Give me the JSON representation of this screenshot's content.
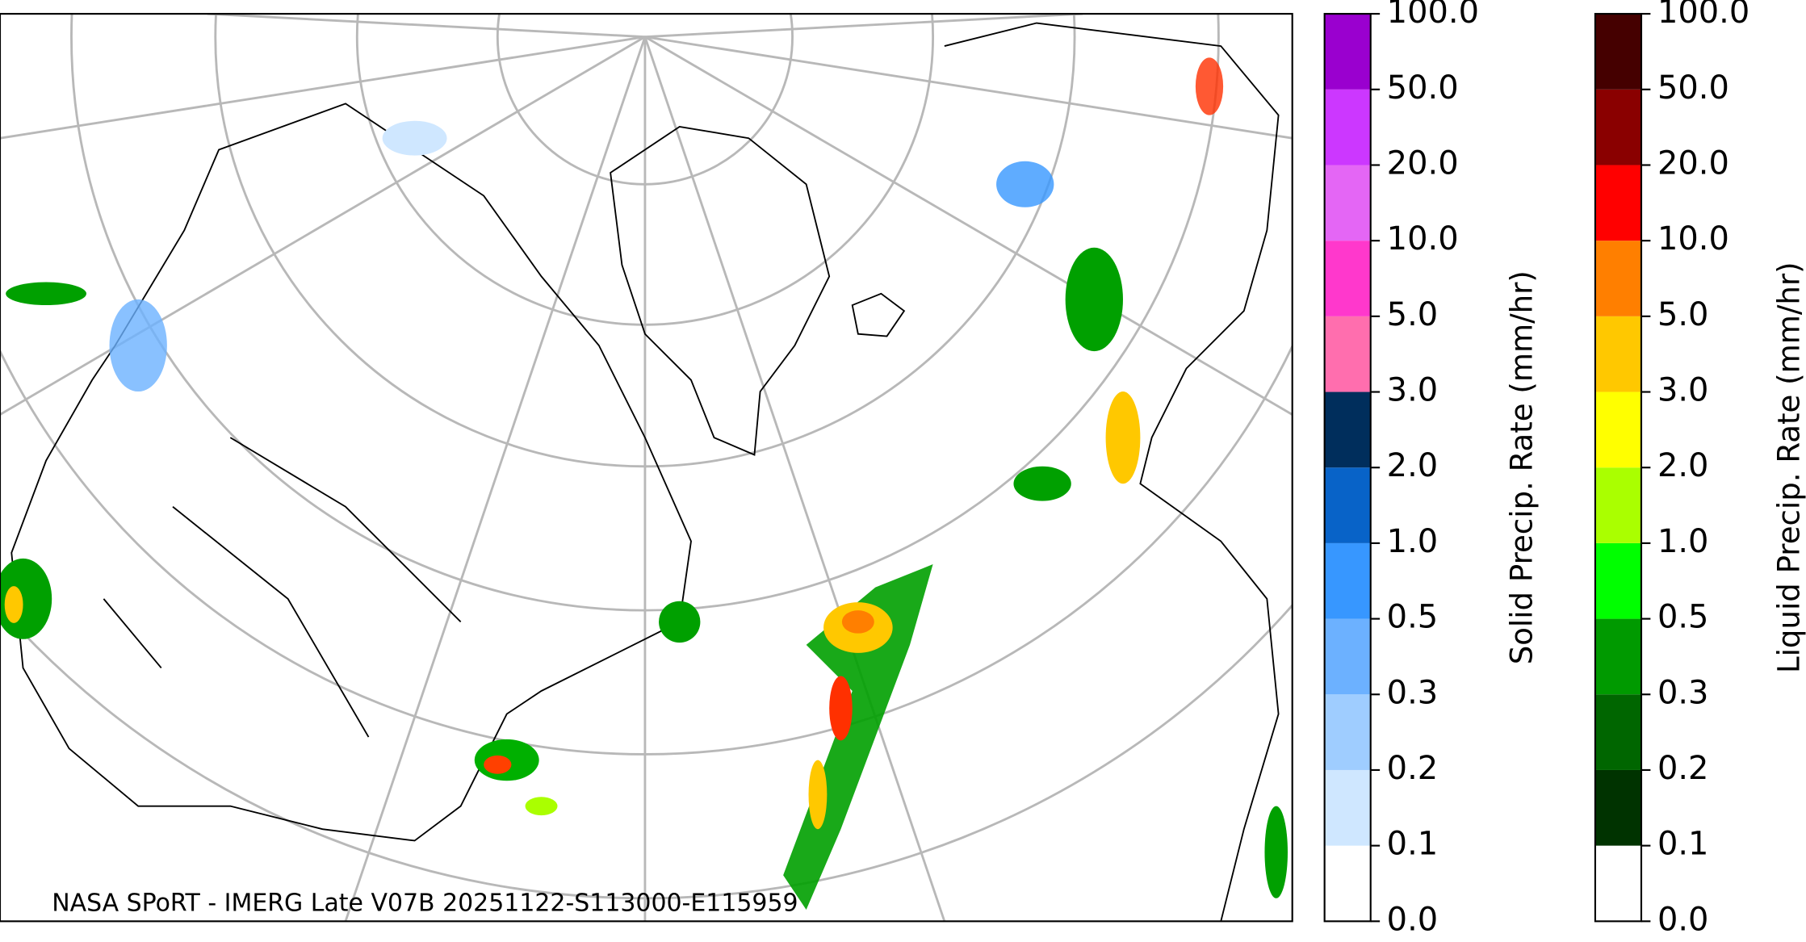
{
  "footer": "NASA SPoRT - IMERG Late V07B 20251122-S113000-E115959",
  "colorbars": [
    {
      "label": "Solid Precip. Rate (mm/hr)",
      "ticks": [
        {
          "value": 0,
          "label": "0.0"
        },
        {
          "value": 0.1,
          "label": "0.1"
        },
        {
          "value": 0.2,
          "label": "0.2"
        },
        {
          "value": 0.3,
          "label": "0.3"
        },
        {
          "value": 0.5,
          "label": "0.5"
        },
        {
          "value": 1,
          "label": "1.0"
        },
        {
          "value": 2,
          "label": "2.0"
        },
        {
          "value": 3,
          "label": "3.0"
        },
        {
          "value": 5,
          "label": "5.0"
        },
        {
          "value": 10,
          "label": "10.0"
        },
        {
          "value": 20,
          "label": "20.0"
        },
        {
          "value": 50,
          "label": "50.0"
        },
        {
          "value": 100,
          "label": "100.0"
        }
      ],
      "colors": [
        "#ffffff",
        "#cfe7ff",
        "#9fcdff",
        "#6cb1ff",
        "#3797ff",
        "#0863c8",
        "#002e5c",
        "#ff6eae",
        "#ff38cc",
        "#e466f5",
        "#cc37ff",
        "#9a00cf"
      ]
    },
    {
      "label": "Liquid Precip. Rate (mm/hr)",
      "ticks": [
        {
          "value": 0,
          "label": "0.0"
        },
        {
          "value": 0.1,
          "label": "0.1"
        },
        {
          "value": 0.2,
          "label": "0.2"
        },
        {
          "value": 0.3,
          "label": "0.3"
        },
        {
          "value": 0.5,
          "label": "0.5"
        },
        {
          "value": 1,
          "label": "1.0"
        },
        {
          "value": 2,
          "label": "2.0"
        },
        {
          "value": 3,
          "label": "3.0"
        },
        {
          "value": 5,
          "label": "5.0"
        },
        {
          "value": 10,
          "label": "10.0"
        },
        {
          "value": 20,
          "label": "20.0"
        },
        {
          "value": 50,
          "label": "50.0"
        },
        {
          "value": 100,
          "label": "100.0"
        }
      ],
      "colors": [
        "#ffffff",
        "#003300",
        "#006600",
        "#009a00",
        "#00ff00",
        "#aaff00",
        "#ffff00",
        "#ffc800",
        "#ff7f00",
        "#ff0000",
        "#8a0000",
        "#450000"
      ]
    }
  ]
}
